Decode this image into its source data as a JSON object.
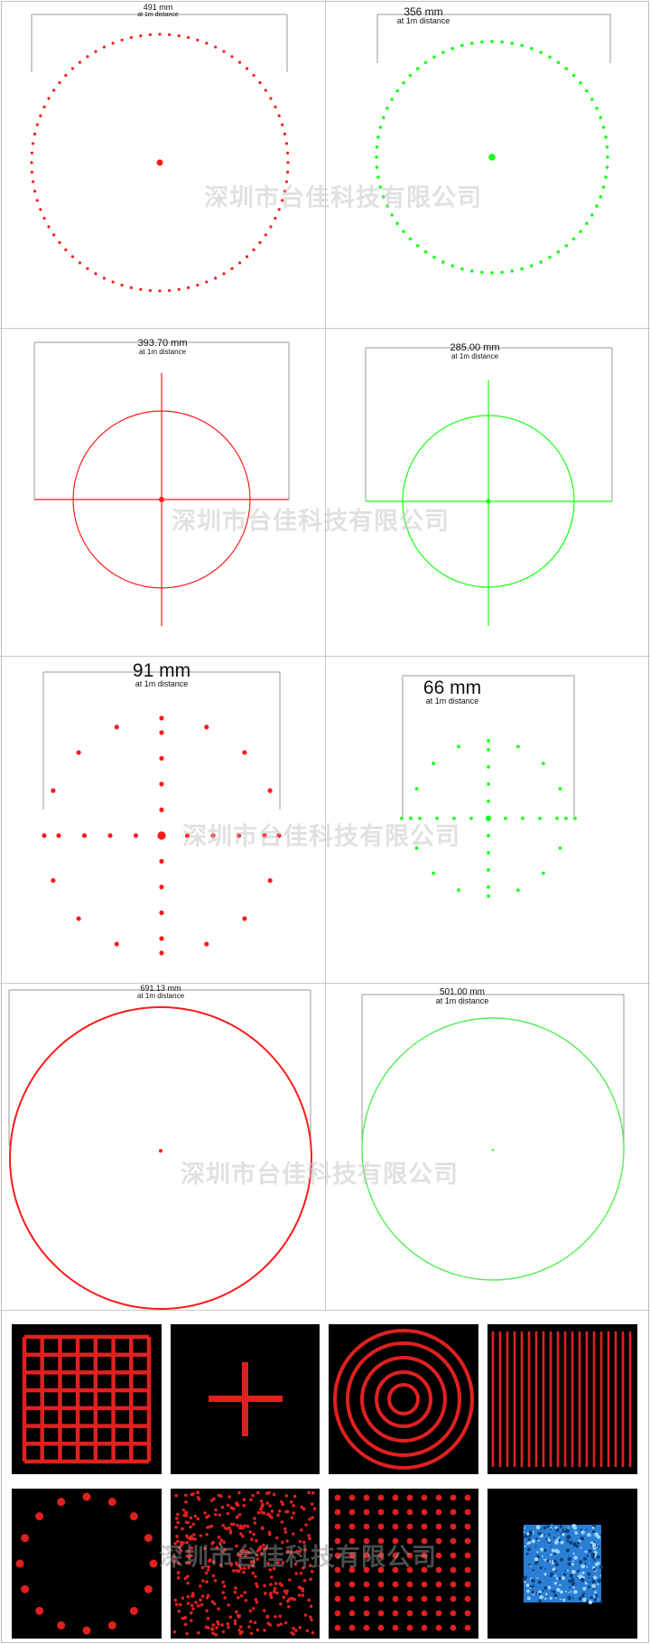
{
  "panels": [
    {
      "id": "p1",
      "width_label": "491 mm",
      "distance_label": "at 1m distance",
      "color": "#ff1a1a",
      "pattern": "dot-circle"
    },
    {
      "id": "p2",
      "width_label": "356 mm",
      "distance_label": "at 1m distance",
      "color": "#1aff1a",
      "pattern": "dot-circle"
    },
    {
      "id": "p3",
      "width_label": "393.70 mm",
      "distance_label": "at 1m distance",
      "color": "#ff1a1a",
      "pattern": "circle-crosshair"
    },
    {
      "id": "p4",
      "width_label": "285.00 mm",
      "distance_label": "at 1m distance",
      "color": "#1aff1a",
      "pattern": "circle-crosshair"
    },
    {
      "id": "p5",
      "width_label": "91 mm",
      "distance_label": "at 1m distance",
      "color": "#ff1a1a",
      "pattern": "dot-grid-cross"
    },
    {
      "id": "p6",
      "width_label": "66 mm",
      "distance_label": "at 1m distance",
      "color": "#1aff1a",
      "pattern": "dot-grid-cross"
    },
    {
      "id": "p7",
      "width_label": "691.13 mm",
      "distance_label": "at 1m distance",
      "color": "#ff1a1a",
      "pattern": "circle"
    },
    {
      "id": "p8",
      "width_label": "501.00 mm",
      "distance_label": "at 1m distance",
      "color": "#55ee55",
      "pattern": "circle"
    }
  ],
  "pattern_tiles": [
    {
      "id": "grid",
      "color": "#e02020"
    },
    {
      "id": "cross",
      "color": "#e02020"
    },
    {
      "id": "concentric-rings",
      "color": "#e02020"
    },
    {
      "id": "vertical-lines",
      "color": "#e02020"
    },
    {
      "id": "dot-ring",
      "color": "#e02020"
    },
    {
      "id": "random-dots",
      "color": "#e02020"
    },
    {
      "id": "dot-matrix",
      "color": "#e02020"
    },
    {
      "id": "blue-square",
      "color": "#2a7fd4"
    }
  ],
  "watermark": "深圳市台佳科技有限公司"
}
